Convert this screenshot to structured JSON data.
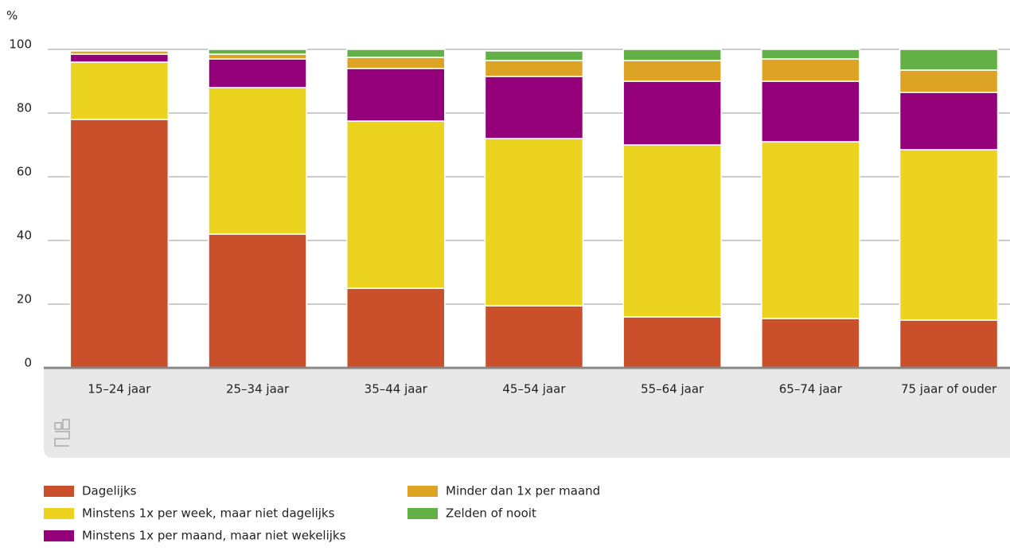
{
  "chart_data": {
    "type": "stacked_bar",
    "y_unit": "%",
    "categories": [
      "15–24 jaar",
      "25–34 jaar",
      "35–44 jaar",
      "45–54 jaar",
      "55–64 jaar",
      "65–74 jaar",
      "75 jaar of ouder"
    ],
    "series": [
      {
        "name": "Dagelijks",
        "color": "#c9502a",
        "values": [
          78,
          42,
          25,
          19.5,
          16,
          15.5,
          15
        ]
      },
      {
        "name": "Minstens 1x per week, maar niet dagelijks",
        "color": "#ebd31f",
        "values": [
          18,
          46,
          52.5,
          52.5,
          54,
          55.5,
          53.5
        ]
      },
      {
        "name": "Minstens 1x per maand, maar niet wekelijks",
        "color": "#93007a",
        "values": [
          2.5,
          9,
          16.5,
          19.5,
          20,
          19,
          18
        ]
      },
      {
        "name": "Minder dan 1x per maand",
        "color": "#dca325",
        "values": [
          1,
          1.5,
          3.5,
          5,
          6.5,
          7,
          7
        ]
      },
      {
        "name": "Zelden of nooit",
        "color": "#62b046",
        "values": [
          0,
          1.5,
          2.5,
          3,
          3.5,
          3,
          6.5
        ]
      }
    ],
    "ylim": [
      0,
      100
    ],
    "yticks": [
      0,
      20,
      40,
      60,
      80,
      100
    ],
    "grid": true
  }
}
